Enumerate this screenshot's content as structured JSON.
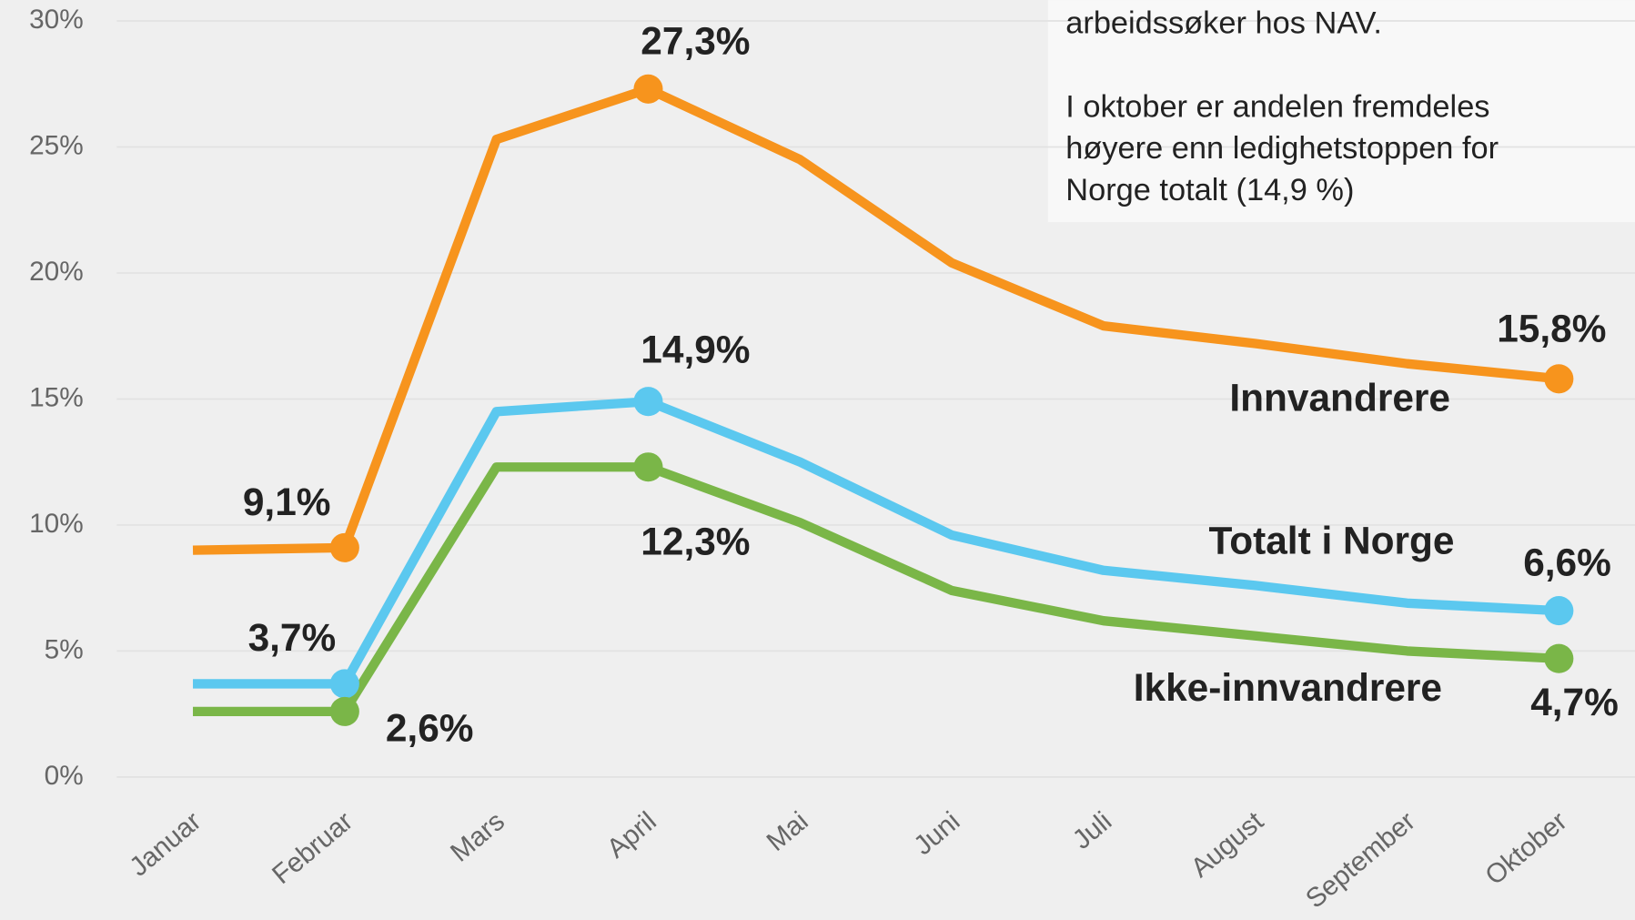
{
  "chart_data": {
    "type": "line",
    "categories": [
      "Januar",
      "Februar",
      "Mars",
      "April",
      "Mai",
      "Juni",
      "Juli",
      "August",
      "September",
      "Oktober"
    ],
    "series": [
      {
        "name": "Innvandrere",
        "color": "#f7941d",
        "values": [
          9.0,
          9.1,
          25.3,
          27.3,
          24.5,
          20.4,
          17.9,
          17.2,
          16.4,
          15.8
        ],
        "value_labels": [
          null,
          "9,1%",
          null,
          "27,3%",
          null,
          null,
          null,
          null,
          null,
          "15,8%"
        ]
      },
      {
        "name": "Totalt i Norge",
        "color": "#5bc8ef",
        "values": [
          3.7,
          3.7,
          14.5,
          14.9,
          12.5,
          9.6,
          8.2,
          7.6,
          6.9,
          6.6
        ],
        "value_labels": [
          null,
          "3,7%",
          null,
          "14,9%",
          null,
          null,
          null,
          null,
          null,
          "6,6%"
        ]
      },
      {
        "name": "Ikke-innvandrere",
        "color": "#7ab648",
        "values": [
          2.6,
          2.6,
          12.3,
          12.3,
          10.1,
          7.4,
          6.2,
          5.6,
          5.0,
          4.7
        ],
        "value_labels": [
          null,
          "2,6%",
          null,
          "12,3%",
          null,
          null,
          null,
          null,
          null,
          "4,7%"
        ]
      }
    ],
    "ylim": [
      0,
      30
    ],
    "yticks": [
      {
        "value": 0,
        "label": "0%"
      },
      {
        "value": 5,
        "label": "5%"
      },
      {
        "value": 10,
        "label": "10%"
      },
      {
        "value": 15,
        "label": "15%"
      },
      {
        "value": 20,
        "label": "20%"
      },
      {
        "value": 25,
        "label": "25%"
      },
      {
        "value": 30,
        "label": "30%"
      }
    ],
    "grid": true,
    "annotation": [
      "arbeidssøker hos NAV.",
      "",
      "I oktober er andelen fremdeles",
      "høyere enn ledighetstoppen for",
      "Norge totalt (14,9 %)"
    ]
  }
}
